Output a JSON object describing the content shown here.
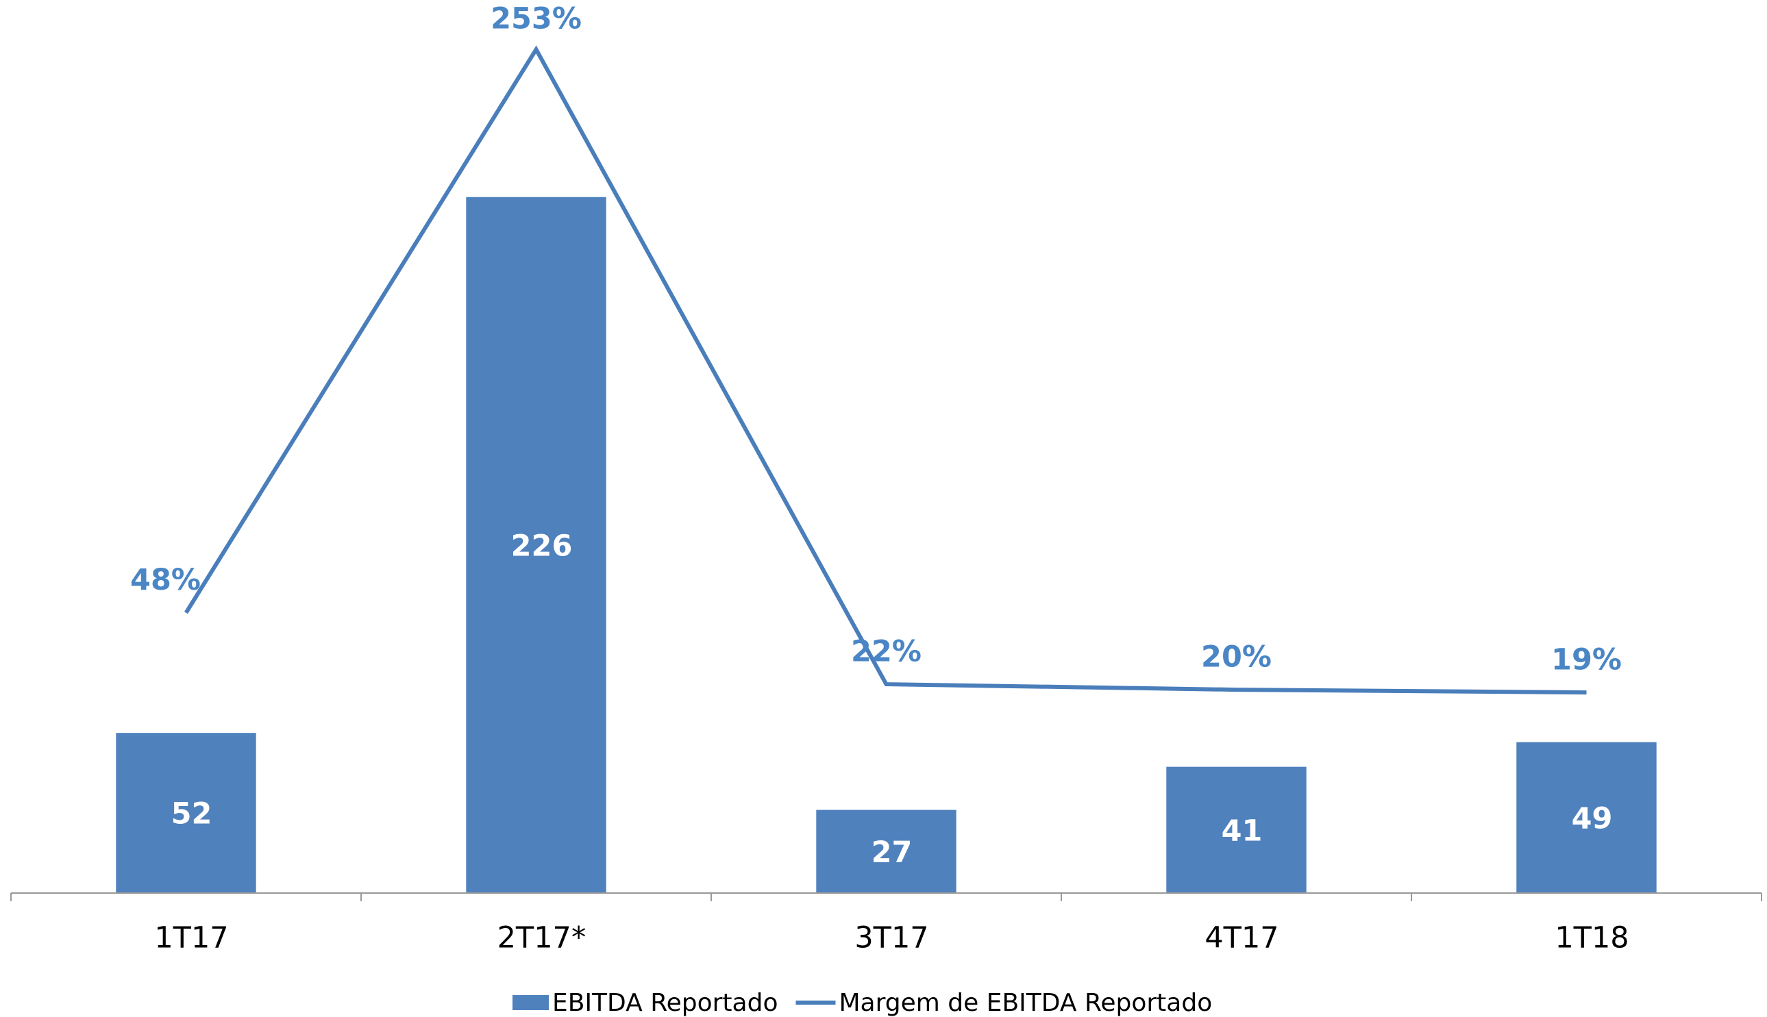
{
  "chart_data": {
    "type": "bar-line",
    "categories": [
      "1T17",
      "2T17*",
      "3T17",
      "4T17",
      "1T18"
    ],
    "series": [
      {
        "name": "EBITDA Reportado",
        "type": "bar",
        "color": "#4f81bd",
        "values": [
          52,
          226,
          27,
          41,
          49
        ]
      },
      {
        "name": "Margem de EBITDA Reportado",
        "type": "line",
        "axis": "y2",
        "color": "#4a7ebb",
        "values": [
          48,
          253,
          22,
          20,
          19
        ],
        "value_labels": [
          "48%",
          "253%",
          "22%",
          "20%",
          "19%"
        ]
      }
    ],
    "ylim": [
      0,
      290
    ],
    "y2lim": [
      -54,
      271
    ],
    "legend": "bottom"
  }
}
